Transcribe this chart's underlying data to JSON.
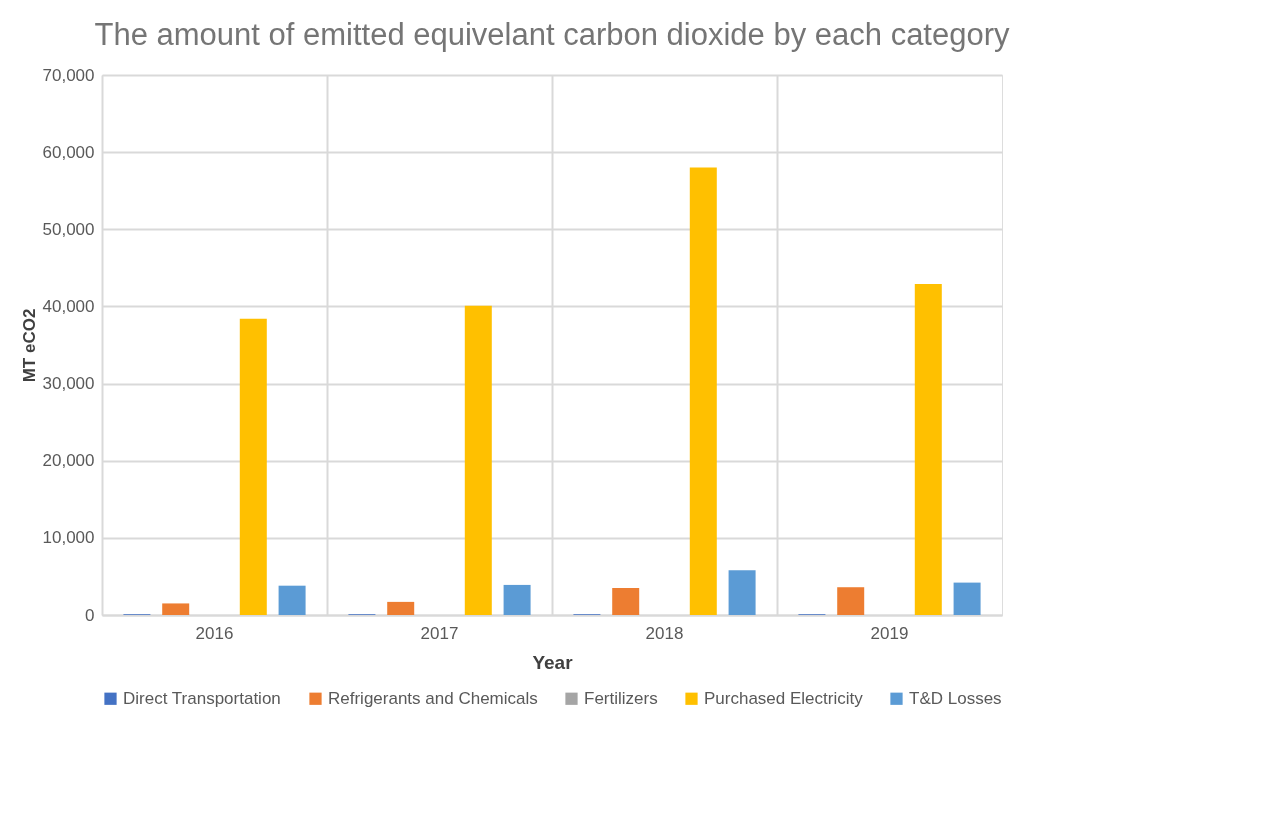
{
  "chart_data": {
    "type": "bar",
    "title": "The amount of emitted equivelant carbon dioxide by each category",
    "xlabel": "Year",
    "ylabel": "MT eCO2",
    "categories": [
      "2016",
      "2017",
      "2018",
      "2019"
    ],
    "series": [
      {
        "name": "Direct Transportation",
        "color": "#4472c4",
        "values": [
          100,
          100,
          100,
          100
        ]
      },
      {
        "name": "Refrigerants and Chemicals",
        "color": "#ed7d31",
        "values": [
          1500,
          1700,
          3500,
          3600
        ]
      },
      {
        "name": "Fertilizers",
        "color": "#a5a5a5",
        "values": [
          0,
          0,
          0,
          0
        ]
      },
      {
        "name": "Purchased Electricity",
        "color": "#ffc000",
        "values": [
          38400,
          40100,
          58000,
          42900
        ]
      },
      {
        "name": "T&D Losses",
        "color": "#5b9bd5",
        "values": [
          3800,
          3900,
          5800,
          4200
        ]
      }
    ],
    "ylim": [
      0,
      70000
    ],
    "yticks": [
      0,
      {
        "value": 10000,
        "label": "10,000"
      },
      {
        "value": 20000,
        "label": "20,000"
      },
      {
        "value": 30000,
        "label": "30,000"
      },
      {
        "value": 40000,
        "label": "40,000"
      },
      {
        "value": 50000,
        "label": "50,000"
      },
      {
        "value": 60000,
        "label": "60,000"
      },
      {
        "value": 70000,
        "label": "70,000"
      }
    ],
    "grid": true,
    "legend": "bottom"
  }
}
